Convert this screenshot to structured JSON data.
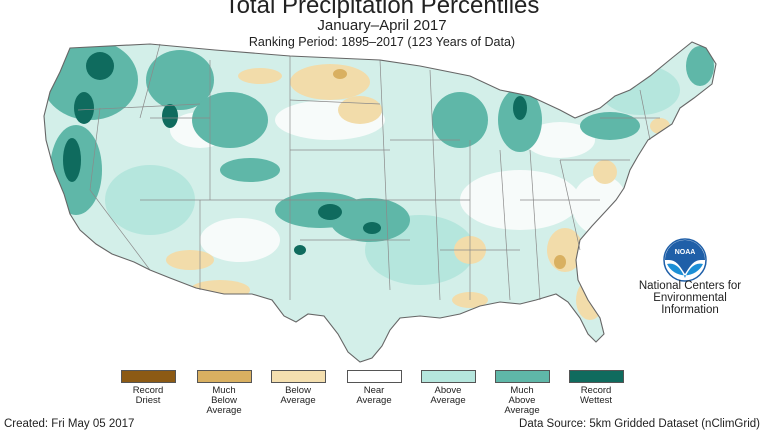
{
  "header": {
    "title": "Total Precipitation Percentiles",
    "subtitle": "January–April 2017",
    "ranking_period": "Ranking Period: 1895–2017 (123 Years of Data)"
  },
  "agency": {
    "logo_text": "NOAA",
    "line1": "National Centers for",
    "line2": "Environmental",
    "line3": "Information"
  },
  "legend": [
    {
      "lines": [
        "Record",
        "Driest"
      ],
      "color": "#8c5a14"
    },
    {
      "lines": [
        "Much",
        "Below",
        "Average"
      ],
      "color": "#d9b061"
    },
    {
      "lines": [
        "Below",
        "Average"
      ],
      "color": "#f4dfaf"
    },
    {
      "lines": [
        "Near",
        "Average"
      ],
      "color": "#ffffff"
    },
    {
      "lines": [
        "Above",
        "Average"
      ],
      "color": "#b5e6dd"
    },
    {
      "lines": [
        "Much",
        "Above",
        "Average"
      ],
      "color": "#5fb7a8"
    },
    {
      "lines": [
        "Record",
        "Wettest"
      ],
      "color": "#0f6b5e"
    }
  ],
  "footer": {
    "created": "Created: Fri May 05 2017",
    "source": "Data Source: 5km Gridded Dataset (nClimGrid)"
  },
  "map_colors": {
    "base": "#d3efe9",
    "near": "#f7fbfa",
    "above": "#b5e6dd",
    "much_above": "#5fb7a8",
    "record_wettest": "#0f6b5e",
    "below": "#f2dcaa",
    "much_below": "#d9b061",
    "borders": "#8a8a8a"
  }
}
